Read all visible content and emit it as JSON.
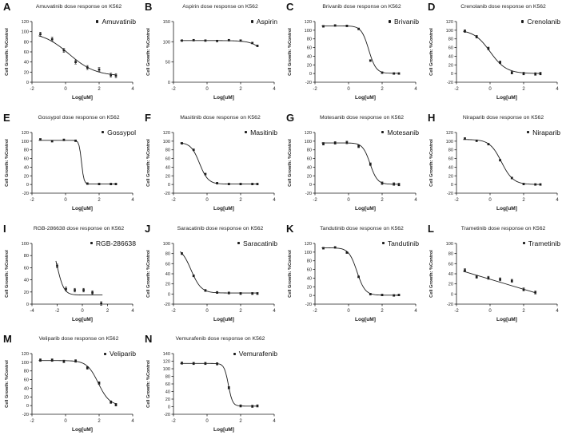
{
  "figure": {
    "background": "#ffffff",
    "ink": "#1c1c1c",
    "curve_color": "#1c1c1c",
    "marker_color": "#1c1c1c"
  },
  "shared": {
    "xlabel": "Log[uM]",
    "ylabel": "Cell Growth: %Control",
    "cell_line": "K562",
    "legend_marker": "dot-icon"
  },
  "chart_data": [
    {
      "letter": "A",
      "title": "Amuvatinib dose response on K562",
      "legend": "Amuvatinib",
      "type": "scatter",
      "xlim": [
        -2,
        4
      ],
      "ylim": [
        0,
        120
      ],
      "xticks": [
        -2,
        0,
        2,
        4
      ],
      "yticks": [
        0,
        20,
        40,
        60,
        80,
        100,
        120
      ],
      "x": [
        -1.5,
        -0.8,
        -0.1,
        0.6,
        1.3,
        2,
        2.7,
        3
      ],
      "y": [
        95,
        85,
        63,
        40,
        29,
        25,
        14,
        13
      ],
      "err": 4,
      "fit": {
        "type": "4pl",
        "top": 100,
        "bottom": 12,
        "logic50": 0.2,
        "hill": 0.55,
        "xstart": -1.6,
        "xend": 3.05
      }
    },
    {
      "letter": "B",
      "title": "Aspirin dose response on K562",
      "legend": "Aspirin",
      "type": "scatter",
      "xlim": [
        -2,
        4
      ],
      "ylim": [
        0,
        150
      ],
      "xticks": [
        -2,
        0,
        2,
        4
      ],
      "yticks": [
        0,
        50,
        100,
        150
      ],
      "x": [
        -1.5,
        -0.8,
        -0.1,
        0.6,
        1.3,
        2,
        2.7,
        3
      ],
      "y": [
        103,
        104,
        103,
        102,
        104,
        103,
        97,
        90
      ],
      "err": 2,
      "fit": {
        "type": "4pl",
        "top": 103,
        "bottom": 0,
        "logic50": 3.8,
        "hill": 1.0,
        "xstart": -1.6,
        "xend": 3.05
      }
    },
    {
      "letter": "C",
      "title": "Brivanib dose response on K562",
      "legend": "Brivanib",
      "type": "scatter",
      "xlim": [
        -2,
        4
      ],
      "ylim": [
        -20,
        120
      ],
      "xticks": [
        -2,
        0,
        2,
        4
      ],
      "yticks": [
        -20,
        0,
        20,
        40,
        60,
        80,
        100,
        120
      ],
      "x": [
        -1.5,
        -0.8,
        -0.1,
        0.6,
        1.3,
        2,
        2.7,
        3
      ],
      "y": [
        109,
        111,
        110,
        103,
        30,
        2,
        0,
        0
      ],
      "err": 2,
      "fit": {
        "type": "4pl",
        "top": 110,
        "bottom": 0.5,
        "logic50": 1.2,
        "hill": 2.0,
        "xstart": -1.6,
        "xend": 3.05
      }
    },
    {
      "letter": "D",
      "title": "Crenolanib dose response on K562",
      "legend": "Crenolanib",
      "type": "scatter",
      "xlim": [
        -2,
        4
      ],
      "ylim": [
        -20,
        120
      ],
      "xticks": [
        -2,
        0,
        2,
        4
      ],
      "yticks": [
        -20,
        0,
        20,
        40,
        60,
        80,
        100,
        120
      ],
      "x": [
        -1.5,
        -0.8,
        -0.1,
        0.6,
        1.3,
        2,
        2.7,
        3
      ],
      "y": [
        98,
        85,
        58,
        26,
        2,
        0,
        -1,
        0
      ],
      "err": 3,
      "fit": {
        "type": "4pl",
        "top": 101,
        "bottom": 0,
        "logic50": 0.0,
        "hill": 0.9,
        "xstart": -1.6,
        "xend": 3.05
      }
    },
    {
      "letter": "E",
      "title": "Gossypol dose response on K562",
      "legend": "Gossypol",
      "type": "scatter",
      "xlim": [
        -2,
        4
      ],
      "ylim": [
        -20,
        120
      ],
      "xticks": [
        -2,
        0,
        2,
        4
      ],
      "yticks": [
        -20,
        0,
        20,
        40,
        60,
        80,
        100,
        120
      ],
      "x": [
        -1.5,
        -0.8,
        -0.1,
        0.6,
        1.3,
        2,
        2.7,
        3
      ],
      "y": [
        104,
        100,
        103,
        101,
        2,
        1,
        1,
        1
      ],
      "err": 2,
      "fit": {
        "type": "4pl",
        "top": 102,
        "bottom": 1,
        "logic50": 0.95,
        "hill": 6.0,
        "xstart": -1.6,
        "xend": 3.05
      }
    },
    {
      "letter": "F",
      "title": "Masitinib dose response on K562",
      "legend": "Masitinib",
      "type": "scatter",
      "xlim": [
        -2,
        4
      ],
      "ylim": [
        -20,
        120
      ],
      "xticks": [
        -2,
        0,
        2,
        4
      ],
      "yticks": [
        -20,
        0,
        20,
        40,
        60,
        80,
        100,
        120
      ],
      "x": [
        -1.5,
        -0.8,
        -0.1,
        0.6,
        1.3,
        2,
        2.7,
        3
      ],
      "y": [
        95,
        80,
        24,
        3,
        1,
        1,
        1,
        1
      ],
      "err": 2,
      "fit": {
        "type": "4pl",
        "top": 97,
        "bottom": 1,
        "logic50": -0.45,
        "hill": 1.7,
        "xstart": -1.6,
        "xend": 3.05
      }
    },
    {
      "letter": "G",
      "title": "Motesanib dose response on K562",
      "legend": "Motesanib",
      "type": "scatter",
      "xlim": [
        -2,
        4
      ],
      "ylim": [
        -20,
        120
      ],
      "xticks": [
        -2,
        0,
        2,
        4
      ],
      "yticks": [
        -20,
        0,
        20,
        40,
        60,
        80,
        100,
        120
      ],
      "x": [
        -1.5,
        -0.8,
        -0.1,
        0.6,
        1.3,
        2,
        2.7,
        3
      ],
      "y": [
        94,
        96,
        97,
        88,
        47,
        3,
        1,
        0
      ],
      "err": 3,
      "fit": {
        "type": "4pl",
        "top": 96,
        "bottom": 0.5,
        "logic50": 1.28,
        "hill": 2.0,
        "xstart": -1.6,
        "xend": 3.05
      }
    },
    {
      "letter": "H",
      "title": "Niraparib dose response on K562",
      "legend": "Niraparib",
      "type": "scatter",
      "xlim": [
        -2,
        4
      ],
      "ylim": [
        -20,
        120
      ],
      "xticks": [
        -2,
        0,
        2,
        4
      ],
      "yticks": [
        -20,
        0,
        20,
        40,
        60,
        80,
        100,
        120
      ],
      "x": [
        -1.5,
        -0.8,
        -0.1,
        0.6,
        1.3,
        2,
        2.7,
        3
      ],
      "y": [
        106,
        101,
        93,
        56,
        15,
        1,
        0,
        0
      ],
      "err": 2,
      "fit": {
        "type": "4pl",
        "top": 104,
        "bottom": 0,
        "logic50": 0.68,
        "hill": 1.25,
        "xstart": -1.6,
        "xend": 3.05
      }
    },
    {
      "letter": "I",
      "title": "RGB-286638 dose response on K562",
      "legend": "RGB-286638",
      "type": "scatter",
      "xlim": [
        -4,
        4
      ],
      "ylim": [
        0,
        100
      ],
      "xticks": [
        -4,
        -2,
        0,
        2,
        4
      ],
      "yticks": [
        0,
        20,
        40,
        60,
        80,
        100
      ],
      "x": [
        -2,
        -1.3,
        -0.6,
        0.1,
        0.8,
        1.5
      ],
      "y": [
        63,
        25,
        23,
        23,
        19,
        1
      ],
      "err": 3,
      "fit": {
        "type": "4pl",
        "top": 110,
        "bottom": 15,
        "logic50": -2.0,
        "hill": 1.6,
        "xstart": -2.1,
        "xend": 1.6
      }
    },
    {
      "letter": "J",
      "title": "Saracatinib dose response on K562",
      "legend": "Saracatinib",
      "type": "scatter",
      "xlim": [
        -2,
        4
      ],
      "ylim": [
        -20,
        100
      ],
      "xticks": [
        -2,
        0,
        2,
        4
      ],
      "yticks": [
        -20,
        0,
        20,
        40,
        60,
        80,
        100
      ],
      "x": [
        -1.5,
        -0.8,
        -0.1,
        0.6,
        1.3,
        2,
        2.7,
        3
      ],
      "y": [
        80,
        36,
        7,
        3,
        2,
        1,
        1,
        1
      ],
      "err": 2,
      "fit": {
        "type": "4pl",
        "top": 93,
        "bottom": 2,
        "logic50": -0.95,
        "hill": 1.45,
        "xstart": -1.6,
        "xend": 3.05
      }
    },
    {
      "letter": "K",
      "title": "Tandutinib dose response on K562",
      "legend": "Tandutinib",
      "type": "scatter",
      "xlim": [
        -2,
        4
      ],
      "ylim": [
        -20,
        120
      ],
      "xticks": [
        -2,
        0,
        2,
        4
      ],
      "yticks": [
        -20,
        0,
        20,
        40,
        60,
        80,
        100,
        120
      ],
      "x": [
        -1.5,
        -0.8,
        -0.1,
        0.6,
        1.3,
        2,
        2.7,
        3
      ],
      "y": [
        109,
        111,
        99,
        43,
        3,
        1,
        0,
        1
      ],
      "err": 2,
      "fit": {
        "type": "4pl",
        "top": 110,
        "bottom": 0.5,
        "logic50": 0.5,
        "hill": 1.8,
        "xstart": -1.6,
        "xend": 3.05
      }
    },
    {
      "letter": "L",
      "title": "Trametinib dose response on K562",
      "legend": "Trametinib",
      "type": "scatter",
      "xlim": [
        -2,
        4
      ],
      "ylim": [
        -20,
        100
      ],
      "xticks": [
        -2,
        0,
        2,
        4
      ],
      "yticks": [
        -20,
        0,
        20,
        40,
        60,
        80,
        100
      ],
      "x": [
        -1.5,
        -0.8,
        -0.1,
        0.6,
        1.3,
        2,
        2.7
      ],
      "y": [
        47,
        34,
        32,
        29,
        26,
        9,
        3
      ],
      "err": 3,
      "fit": {
        "type": "line",
        "x1": -1.6,
        "y1": 45,
        "x2": 2.75,
        "y2": 2
      }
    },
    {
      "letter": "M",
      "title": "Veliparib dose response on K562",
      "legend": "Veliparib",
      "type": "scatter",
      "xlim": [
        -2,
        4
      ],
      "ylim": [
        -20,
        120
      ],
      "xticks": [
        -2,
        0,
        2,
        4
      ],
      "yticks": [
        -20,
        0,
        20,
        40,
        60,
        80,
        100,
        120
      ],
      "x": [
        -1.5,
        -0.8,
        -0.1,
        0.6,
        1.3,
        2,
        2.7,
        3
      ],
      "y": [
        105,
        105,
        102,
        103,
        87,
        52,
        8,
        2
      ],
      "err": 3,
      "fit": {
        "type": "4pl",
        "top": 104,
        "bottom": 0,
        "logic50": 1.95,
        "hill": 1.3,
        "xstart": -1.6,
        "xend": 3.05
      }
    },
    {
      "letter": "N",
      "title": "Vemurafenib dose response on K562",
      "legend": "Vemurafenib",
      "type": "scatter",
      "xlim": [
        -2,
        4
      ],
      "ylim": [
        -20,
        140
      ],
      "xticks": [
        -2,
        0,
        2,
        4
      ],
      "yticks": [
        -20,
        0,
        20,
        40,
        60,
        80,
        100,
        120,
        140
      ],
      "x": [
        -1.5,
        -0.8,
        -0.1,
        0.6,
        1.3,
        2,
        2.7,
        3
      ],
      "y": [
        115,
        114,
        114,
        113,
        50,
        2,
        1,
        2
      ],
      "err": 3,
      "fit": {
        "type": "4pl",
        "top": 114,
        "bottom": 1.5,
        "logic50": 1.27,
        "hill": 3.5,
        "xstart": -1.6,
        "xend": 3.05
      }
    }
  ]
}
